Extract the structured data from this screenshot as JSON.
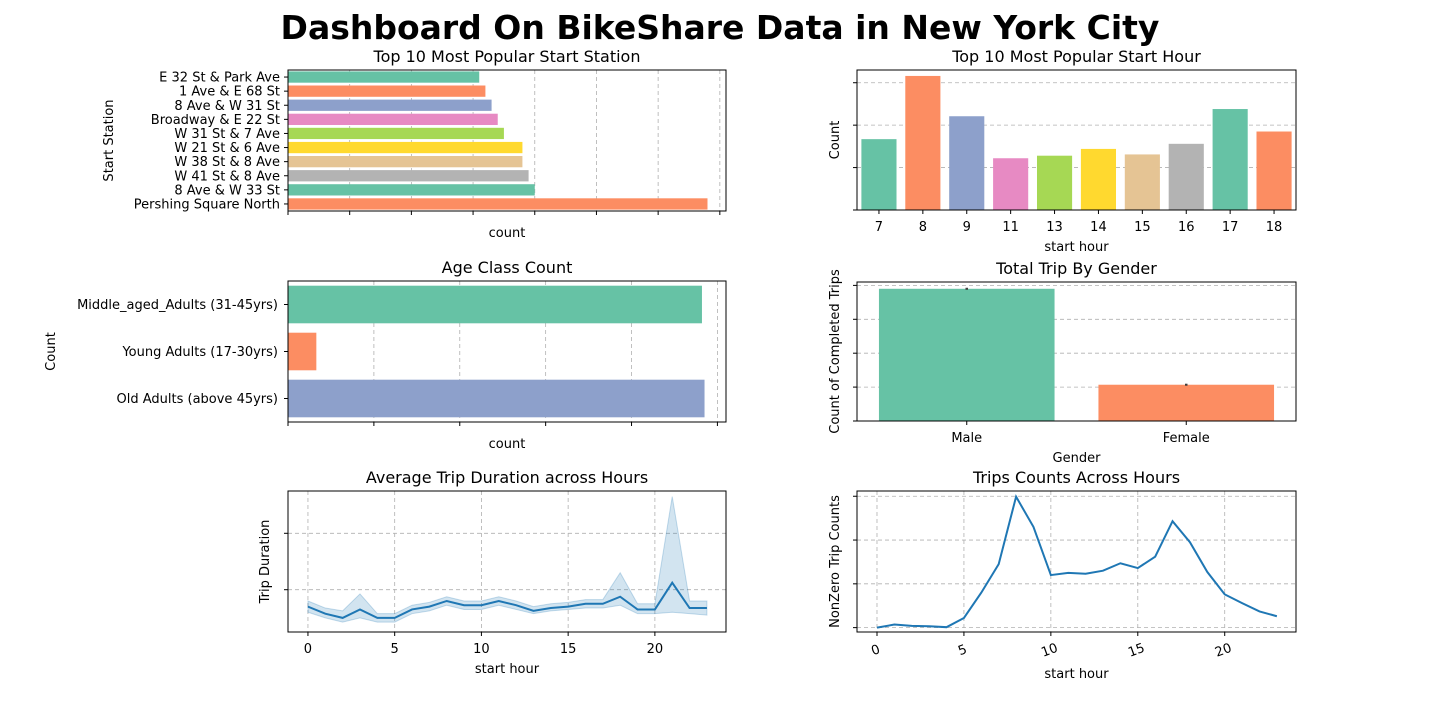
{
  "dashboard": {
    "title": "Dashboard On BikeShare Data in New York City"
  },
  "chart_data": [
    {
      "id": "stations",
      "type": "bar",
      "orientation": "horizontal",
      "title": "Top 10 Most Popular Start Station",
      "xlabel": "count",
      "ylabel": "Start Station",
      "xlim": [
        0,
        7.1
      ],
      "categories": [
        "E 32 St & Park Ave",
        "1 Ave & E 68 St",
        "8 Ave & W 31 St",
        "Broadway & E 22 St",
        "W 31 St & 7 Ave",
        "W 21 St & 6 Ave",
        "W 38 St & 8 Ave",
        "W 41 St & 8 Ave",
        "8 Ave & W 33 St",
        "Pershing Square North"
      ],
      "values": [
        3.1,
        3.2,
        3.3,
        3.4,
        3.5,
        3.8,
        3.8,
        3.9,
        4.0,
        6.8
      ],
      "colors": [
        "#66c2a5",
        "#fc8d62",
        "#8da0cb",
        "#e78ac3",
        "#a6d854",
        "#ffd92f",
        "#e5c494",
        "#b3b3b3",
        "#66c2a5",
        "#fc8d62"
      ],
      "grid": true
    },
    {
      "id": "hours",
      "type": "bar",
      "title": "Top 10 Most Popular Start Hour",
      "xlabel": "start hour",
      "ylabel": "Count",
      "ylim": [
        0,
        3.3
      ],
      "categories": [
        "7",
        "8",
        "9",
        "11",
        "13",
        "14",
        "15",
        "16",
        "17",
        "18"
      ],
      "values": [
        1.67,
        3.16,
        2.21,
        1.22,
        1.28,
        1.44,
        1.31,
        1.56,
        2.38,
        1.85
      ],
      "colors": [
        "#66c2a5",
        "#fc8d62",
        "#8da0cb",
        "#e78ac3",
        "#a6d854",
        "#ffd92f",
        "#e5c494",
        "#b3b3b3",
        "#66c2a5",
        "#fc8d62"
      ],
      "grid": true
    },
    {
      "id": "age",
      "type": "bar",
      "orientation": "horizontal",
      "title": "Age Class Count",
      "xlabel": "count",
      "ylabel": "Count",
      "xlim": [
        0,
        5.1
      ],
      "categories": [
        "Middle_aged_Adults (31-45yrs)",
        "Young Adults (17-30yrs)",
        "Old Adults (above 45yrs)"
      ],
      "values": [
        4.82,
        0.33,
        4.85
      ],
      "colors": [
        "#66c2a5",
        "#fc8d62",
        "#8da0cb"
      ],
      "grid": true
    },
    {
      "id": "gender",
      "type": "bar",
      "title": "Total Trip By Gender",
      "xlabel": "Gender",
      "ylabel": "Count of Completed Trips",
      "ylim": [
        0,
        4.1
      ],
      "categories": [
        "Male",
        "Female"
      ],
      "values": [
        3.9,
        1.07
      ],
      "errors": [
        0.03,
        0.03
      ],
      "colors": [
        "#66c2a5",
        "#fc8d62"
      ],
      "grid": true
    },
    {
      "id": "duration",
      "type": "line",
      "title": "Average Trip Duration across Hours",
      "xlabel": "start hour",
      "ylabel": "Trip Duration",
      "xlim": [
        -1.15,
        24.1
      ],
      "ylim": [
        0,
        1.0
      ],
      "xticks": [
        0,
        5,
        10,
        15,
        20
      ],
      "x": [
        0,
        1,
        2,
        3,
        4,
        5,
        6,
        7,
        8,
        9,
        10,
        11,
        12,
        13,
        14,
        15,
        16,
        17,
        18,
        19,
        20,
        21,
        22,
        23
      ],
      "y": [
        0.18,
        0.13,
        0.1,
        0.16,
        0.1,
        0.1,
        0.16,
        0.18,
        0.22,
        0.19,
        0.19,
        0.22,
        0.19,
        0.15,
        0.17,
        0.18,
        0.2,
        0.2,
        0.25,
        0.16,
        0.16,
        0.35,
        0.17,
        0.17
      ],
      "ci_lower": [
        0.14,
        0.1,
        0.07,
        0.1,
        0.07,
        0.07,
        0.13,
        0.15,
        0.19,
        0.16,
        0.16,
        0.19,
        0.16,
        0.13,
        0.15,
        0.16,
        0.17,
        0.17,
        0.19,
        0.13,
        0.13,
        0.14,
        0.13,
        0.12
      ],
      "ci_upper": [
        0.22,
        0.17,
        0.15,
        0.27,
        0.13,
        0.13,
        0.19,
        0.21,
        0.25,
        0.22,
        0.22,
        0.25,
        0.22,
        0.18,
        0.2,
        0.21,
        0.23,
        0.23,
        0.42,
        0.2,
        0.2,
        0.96,
        0.22,
        0.22
      ],
      "color": "#1f77b4",
      "grid": true
    },
    {
      "id": "counts",
      "type": "line",
      "title": "Trips Counts Across Hours",
      "xlabel": "start hour",
      "ylabel": "NonZero Trip Counts",
      "xlim": [
        -1.15,
        24.1
      ],
      "ylim": [
        -0.1,
        3.12
      ],
      "xticks": [
        0,
        5,
        10,
        15,
        20
      ],
      "xtick_rotation": -20,
      "x": [
        0,
        1,
        2,
        3,
        4,
        5,
        6,
        7,
        8,
        9,
        10,
        11,
        12,
        13,
        14,
        15,
        16,
        17,
        18,
        19,
        20,
        21,
        22,
        23
      ],
      "y": [
        0.0,
        0.07,
        0.04,
        0.03,
        0.01,
        0.22,
        0.8,
        1.45,
        2.99,
        2.3,
        1.2,
        1.25,
        1.23,
        1.3,
        1.47,
        1.36,
        1.62,
        2.43,
        1.95,
        1.27,
        0.76,
        0.56,
        0.37,
        0.26
      ],
      "color": "#1f77b4",
      "grid": true
    }
  ]
}
